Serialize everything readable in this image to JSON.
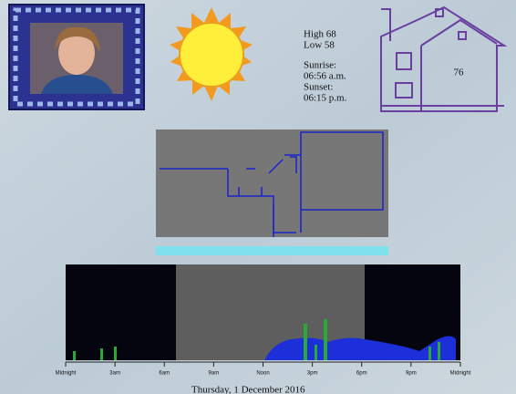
{
  "weather": {
    "high": "High 68",
    "low": "Low 58",
    "sunrise_label": "Sunrise:",
    "sunrise": "06:56 a.m.",
    "sunset_label": "Sunset:",
    "sunset": "06:15 p.m."
  },
  "house": {
    "temperature": "76"
  },
  "activity": {
    "axis_labels": [
      "Midnight",
      "3am",
      "6am",
      "9am",
      "Noon",
      "3pm",
      "6pm",
      "9pm",
      "Midnight"
    ]
  },
  "footer": {
    "date": "Thursday, 1 December 2016"
  }
}
